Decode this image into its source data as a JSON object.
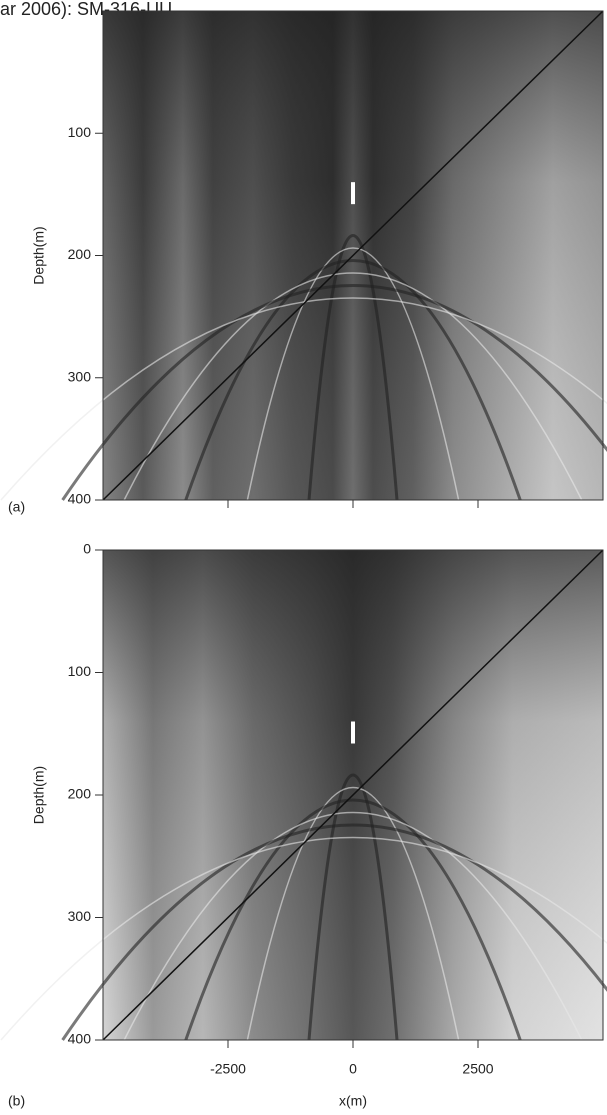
{
  "header": "ar 2006): SM-316-UU",
  "chart_data": [
    {
      "type": "contour",
      "label": "(a)",
      "y_label": "Depth(m)",
      "xlim": [
        -5000,
        5000
      ],
      "ylim": [
        400,
        0
      ],
      "yticks": [
        100,
        200,
        300,
        400
      ],
      "xticks": [
        -2500,
        0,
        2500
      ],
      "show_xtick_labels": false
    },
    {
      "type": "contour",
      "label": "(b)",
      "y_label": "Depth(m)",
      "x_label": "x(m)",
      "xlim": [
        -5000,
        5000
      ],
      "ylim": [
        400,
        0
      ],
      "yticks": [
        0,
        100,
        200,
        300,
        400
      ],
      "xticks": [
        -2500,
        0,
        2500
      ],
      "show_xtick_labels": true
    }
  ]
}
